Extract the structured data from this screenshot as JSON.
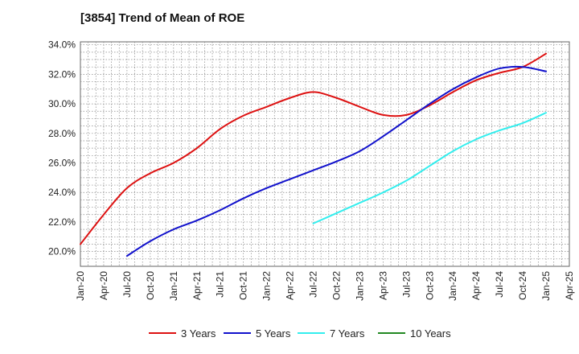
{
  "chart_data": {
    "type": "line",
    "title": "[3854]  Trend of Mean of ROE",
    "xlabel": "",
    "ylabel": "",
    "x_ticks": [
      "Jan-20",
      "Apr-20",
      "Jul-20",
      "Oct-20",
      "Jan-21",
      "Apr-21",
      "Jul-21",
      "Oct-21",
      "Jan-22",
      "Apr-22",
      "Jul-22",
      "Oct-22",
      "Jan-23",
      "Apr-23",
      "Jul-23",
      "Oct-23",
      "Jan-24",
      "Apr-24",
      "Jul-24",
      "Oct-24",
      "Jan-25",
      "Apr-25"
    ],
    "y_ticks": [
      "20.0%",
      "22.0%",
      "24.0%",
      "26.0%",
      "28.0%",
      "30.0%",
      "32.0%",
      "34.0%"
    ],
    "ylim": [
      19.0,
      34.2
    ],
    "grid": true,
    "legend_position": "bottom",
    "series": [
      {
        "name": "3 Years",
        "color": "#dd1111",
        "points": [
          [
            "Jan-20",
            20.5
          ],
          [
            "Apr-20",
            22.5
          ],
          [
            "Jul-20",
            24.3
          ],
          [
            "Oct-20",
            25.3
          ],
          [
            "Jan-21",
            26.0
          ],
          [
            "Apr-21",
            27.0
          ],
          [
            "Jul-21",
            28.3
          ],
          [
            "Oct-21",
            29.2
          ],
          [
            "Jan-22",
            29.8
          ],
          [
            "Apr-22",
            30.4
          ],
          [
            "Jul-22",
            30.8
          ],
          [
            "Oct-22",
            30.4
          ],
          [
            "Jan-23",
            29.8
          ],
          [
            "Apr-23",
            29.25
          ],
          [
            "Jul-23",
            29.25
          ],
          [
            "Oct-23",
            29.9
          ],
          [
            "Jan-24",
            30.8
          ],
          [
            "Apr-24",
            31.6
          ],
          [
            "Jul-24",
            32.1
          ],
          [
            "Oct-24",
            32.5
          ],
          [
            "Jan-25",
            33.4
          ]
        ]
      },
      {
        "name": "5 Years",
        "color": "#1111cc",
        "points": [
          [
            "Jul-20",
            19.7
          ],
          [
            "Oct-20",
            20.7
          ],
          [
            "Jan-21",
            21.5
          ],
          [
            "Apr-21",
            22.1
          ],
          [
            "Jul-21",
            22.8
          ],
          [
            "Oct-21",
            23.6
          ],
          [
            "Jan-22",
            24.3
          ],
          [
            "Apr-22",
            24.9
          ],
          [
            "Jul-22",
            25.5
          ],
          [
            "Oct-22",
            26.1
          ],
          [
            "Jan-23",
            26.8
          ],
          [
            "Apr-23",
            27.8
          ],
          [
            "Jul-23",
            28.9
          ],
          [
            "Oct-23",
            30.0
          ],
          [
            "Jan-24",
            31.0
          ],
          [
            "Apr-24",
            31.8
          ],
          [
            "Jul-24",
            32.4
          ],
          [
            "Oct-24",
            32.5
          ],
          [
            "Jan-25",
            32.2
          ]
        ]
      },
      {
        "name": "7 Years",
        "color": "#33eeee",
        "points": [
          [
            "Jul-22",
            21.9
          ],
          [
            "Oct-22",
            22.6
          ],
          [
            "Jan-23",
            23.3
          ],
          [
            "Apr-23",
            24.0
          ],
          [
            "Jul-23",
            24.8
          ],
          [
            "Oct-23",
            25.8
          ],
          [
            "Jan-24",
            26.8
          ],
          [
            "Apr-24",
            27.6
          ],
          [
            "Jul-24",
            28.2
          ],
          [
            "Oct-24",
            28.7
          ],
          [
            "Jan-25",
            29.4
          ]
        ]
      },
      {
        "name": "10 Years",
        "color": "#228822",
        "points": []
      }
    ]
  }
}
